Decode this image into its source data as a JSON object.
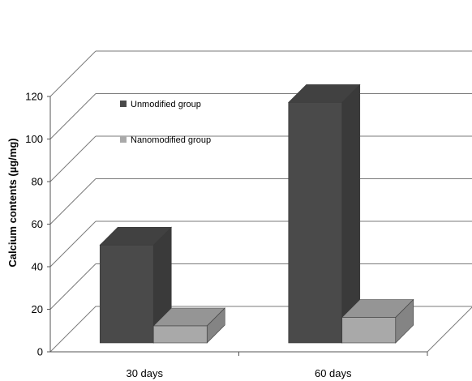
{
  "chart_data": {
    "type": "bar",
    "style": "3d-clustered-column",
    "categories": [
      "30 days",
      "60 days"
    ],
    "series": [
      {
        "name": "Unmodified group",
        "values": [
          46,
          113
        ],
        "color": "#4a4a4a"
      },
      {
        "name": "Nanomodified group",
        "values": [
          8,
          12
        ],
        "color": "#a9a9a9"
      }
    ],
    "title": "",
    "xlabel": "",
    "ylabel": "Calcium contents (µg/mg)",
    "ylim": [
      0,
      120
    ],
    "yticks": [
      "0",
      "20",
      "40",
      "60",
      "80",
      "100",
      "120"
    ],
    "grid": true,
    "legend_position": "inside-upper-left"
  }
}
